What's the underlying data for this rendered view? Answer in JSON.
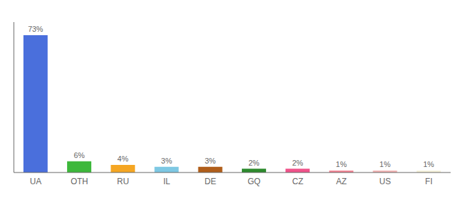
{
  "chart_data": {
    "type": "bar",
    "categories": [
      "UA",
      "OTH",
      "RU",
      "IL",
      "DE",
      "GQ",
      "CZ",
      "AZ",
      "US",
      "FI"
    ],
    "values": [
      73,
      6,
      4,
      3,
      3,
      2,
      2,
      1,
      1,
      1
    ],
    "value_labels": [
      "73%",
      "6%",
      "4%",
      "3%",
      "3%",
      "2%",
      "2%",
      "1%",
      "1%",
      "1%"
    ],
    "colors": [
      "#4a6fdc",
      "#3db83b",
      "#f5a623",
      "#7ec8e3",
      "#b05e1a",
      "#2d8a2d",
      "#f0538a",
      "#f08090",
      "#f0b0b0",
      "#f5f0d8"
    ],
    "ylim": [
      0,
      80
    ],
    "data_labels": true,
    "tick_labels": "x"
  }
}
